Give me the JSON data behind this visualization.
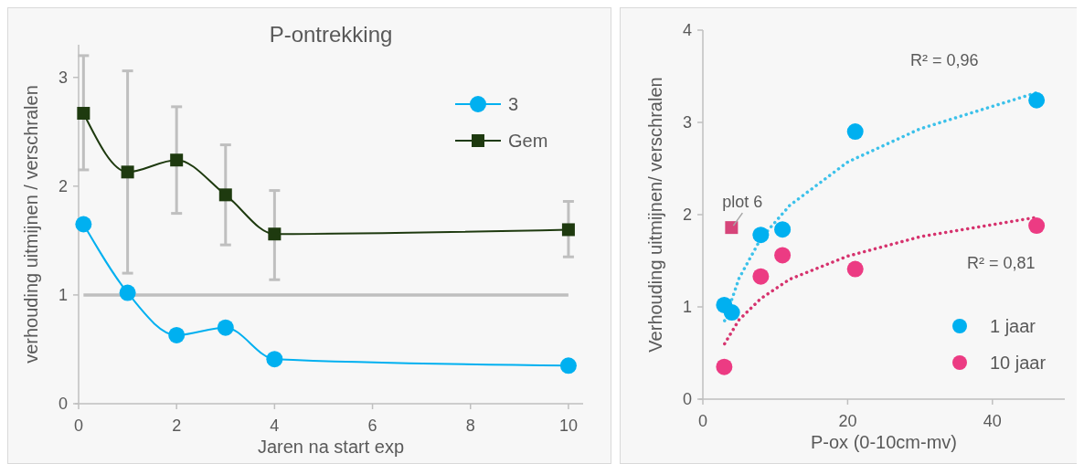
{
  "chart_data": [
    {
      "type": "line",
      "title": "P-ontrekking",
      "xlabel": "Jaren na start exp",
      "ylabel": "verhouding uitmijnen / verschralen",
      "x": [
        0.1,
        1,
        2,
        3,
        4,
        10
      ],
      "xlim": [
        0,
        10.3
      ],
      "xticks": [
        0,
        2,
        4,
        6,
        8,
        10
      ],
      "ylim": [
        0,
        3.3
      ],
      "yticks": [
        0,
        1,
        2,
        3
      ],
      "legend": "top right",
      "grid": false,
      "ref_lines": [
        {
          "axis": "y",
          "value": 1,
          "color": "#bfbfbf"
        }
      ],
      "series": [
        {
          "name": "3",
          "color": "#00b0f0",
          "marker": "circle",
          "values": [
            1.65,
            1.02,
            0.63,
            0.7,
            0.41,
            0.35
          ]
        },
        {
          "name": "Gem",
          "color": "#1e3a0f",
          "marker": "square",
          "values": [
            2.67,
            2.13,
            2.24,
            1.92,
            1.56,
            1.6
          ],
          "errors": [
            [
              2.15,
              3.2
            ],
            [
              1.2,
              3.06
            ],
            [
              1.75,
              2.73
            ],
            [
              1.46,
              2.38
            ],
            [
              1.14,
              1.96
            ],
            [
              1.35,
              1.86
            ]
          ]
        }
      ]
    },
    {
      "type": "scatter",
      "xlabel": "P-ox (0-10cm-mv)",
      "ylabel": "Verhouding uitmijnen/ verschralen",
      "xlim": [
        0,
        50
      ],
      "xticks": [
        0,
        20,
        40
      ],
      "ylim": [
        0,
        4
      ],
      "yticks": [
        0,
        1,
        2,
        3,
        4
      ],
      "legend": "bottom right",
      "grid": false,
      "annotations": [
        {
          "text": "plot 6",
          "x": 3.96,
          "y": 1.86
        },
        "R² = 0,96",
        "R² = 0,81"
      ],
      "series": [
        {
          "type": "line",
          "color": "#3cc1ea",
          "line_style": "dotted",
          "marker": "none",
          "x": [
            3,
            5,
            8,
            12,
            20,
            30,
            46
          ],
          "values": [
            0.85,
            1.31,
            1.74,
            2.1,
            2.57,
            2.93,
            3.32
          ]
        },
        {
          "type": "line",
          "color": "#d6336e",
          "line_style": "dotted",
          "marker": "none",
          "x": [
            3,
            5,
            8,
            12,
            20,
            30,
            46
          ],
          "values": [
            0.6,
            0.86,
            1.09,
            1.3,
            1.55,
            1.76,
            1.97
          ]
        },
        {
          "name": "1 jaar",
          "color": "#00b0f0",
          "marker": "circle",
          "x": [
            2.95,
            4,
            8,
            11,
            21.05,
            46.1
          ],
          "values": [
            1.02,
            0.94,
            1.78,
            1.84,
            2.9,
            3.24
          ]
        },
        {
          "name": "10 jaar",
          "color": "#ec3b83",
          "marker": "circle",
          "x": [
            2.95,
            8,
            11,
            21.05,
            46.1
          ],
          "values": [
            0.35,
            1.33,
            1.56,
            1.41,
            1.88
          ]
        },
        {
          "color": "#d6457a",
          "marker": "square",
          "x": [
            3.96
          ],
          "values": [
            1.86
          ]
        }
      ]
    }
  ]
}
